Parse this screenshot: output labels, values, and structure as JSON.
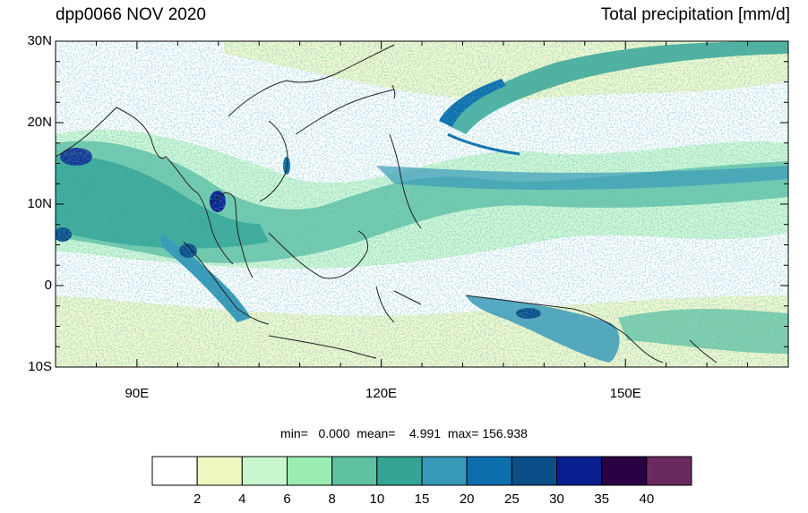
{
  "header": {
    "title_left": "dpp0066 NOV 2020",
    "title_right": "Total precipitation [mm/d]"
  },
  "map": {
    "lon_range": [
      80,
      170
    ],
    "lat_range": [
      -10,
      30
    ],
    "lat_labels": [
      "30N",
      "20N",
      "10N",
      "0",
      "10S"
    ],
    "lat_values": [
      30,
      20,
      10,
      0,
      -10
    ],
    "lon_labels": [
      "90E",
      "120E",
      "150E"
    ],
    "lon_values": [
      90,
      120,
      150
    ]
  },
  "stats": {
    "text": "min=   0.000  mean=    4.991  max= 156.938"
  },
  "colorbar": {
    "colors": [
      "#ffffff",
      "#edf8c0",
      "#c8f7ce",
      "#9becb0",
      "#5dc1a2",
      "#34a594",
      "#3898b8",
      "#0d6eae",
      "#0b4e88",
      "#0a1f8f",
      "#2a0045",
      "#6a2a5f"
    ],
    "labels": [
      "2",
      "4",
      "6",
      "8",
      "10",
      "15",
      "20",
      "25",
      "30",
      "35",
      "40"
    ]
  }
}
